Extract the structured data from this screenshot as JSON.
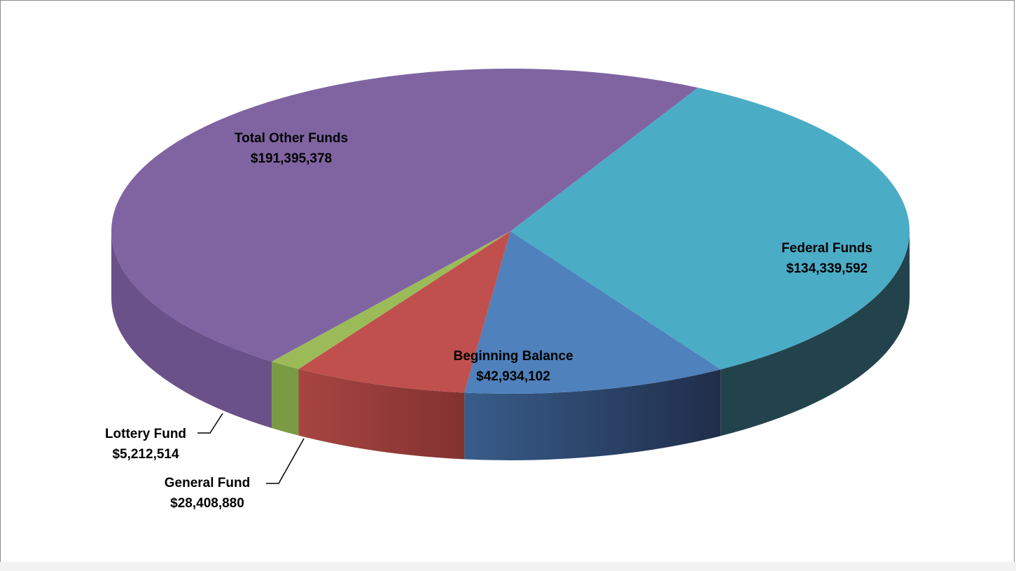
{
  "chart_data": {
    "type": "pie",
    "title": "",
    "slices": [
      {
        "name": "Federal Funds",
        "value_label": "$134,339,592",
        "value": 134339592,
        "color": "#4BACC6",
        "side_color": "#23434C"
      },
      {
        "name": "Beginning Balance",
        "value_label": "$42,934,102",
        "value": 42934102,
        "color": "#4F81BD",
        "side_color": "#2C476D"
      },
      {
        "name": "General Fund",
        "value_label": "$28,408,880",
        "value": 28408880,
        "color": "#C0504D",
        "side_color": "#8C3634"
      },
      {
        "name": "Lottery Fund",
        "value_label": "$5,212,514",
        "value": 5212514,
        "color": "#9BBB59",
        "side_color": "#7A9A44"
      },
      {
        "name": "Total Other Funds",
        "value_label": "$191,395,378",
        "value": 191395378,
        "color": "#8064A2",
        "side_color": "#6A5189"
      }
    ],
    "label_style": "bold, name above value"
  }
}
